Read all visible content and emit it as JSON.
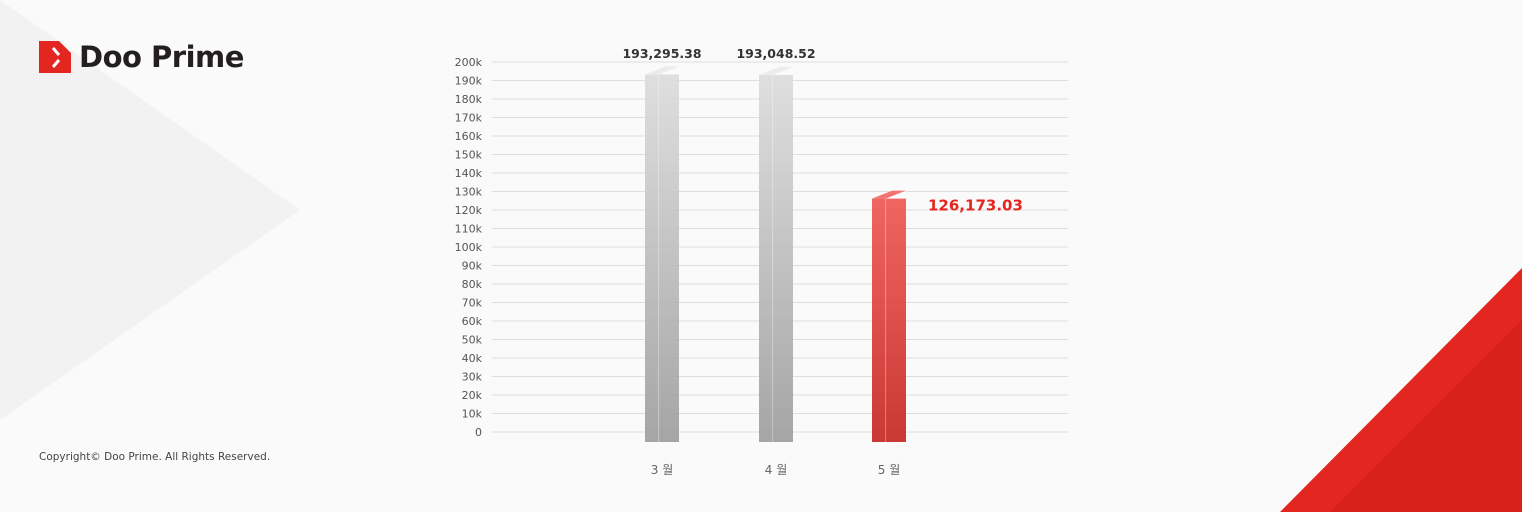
{
  "brand": {
    "name": "Doo Prime",
    "accent": "#e3261f"
  },
  "footer": {
    "copyright": "Copyright© Doo Prime. All Rights Reserved."
  },
  "chart_data": {
    "type": "bar",
    "categories": [
      "3 월",
      "4 월",
      "5 월"
    ],
    "values": [
      193295.38,
      193048.52,
      126173.03
    ],
    "data_labels": [
      "193,295.38",
      "193,048.52",
      "126,173.03"
    ],
    "bar_colors": [
      "#cfcfcf",
      "#cfcfcf",
      "#e8403a"
    ],
    "label_colors": [
      "#333333",
      "#333333",
      "#e3261f"
    ],
    "ylim": [
      0,
      200000
    ],
    "yticks": [
      "0",
      "10k",
      "20k",
      "30k",
      "40k",
      "50k",
      "60k",
      "70k",
      "80k",
      "90k",
      "100k",
      "110k",
      "120k",
      "130k",
      "140k",
      "150k",
      "160k",
      "170k",
      "180k",
      "190k",
      "200k"
    ],
    "grid": true,
    "style": "3d-bar"
  }
}
